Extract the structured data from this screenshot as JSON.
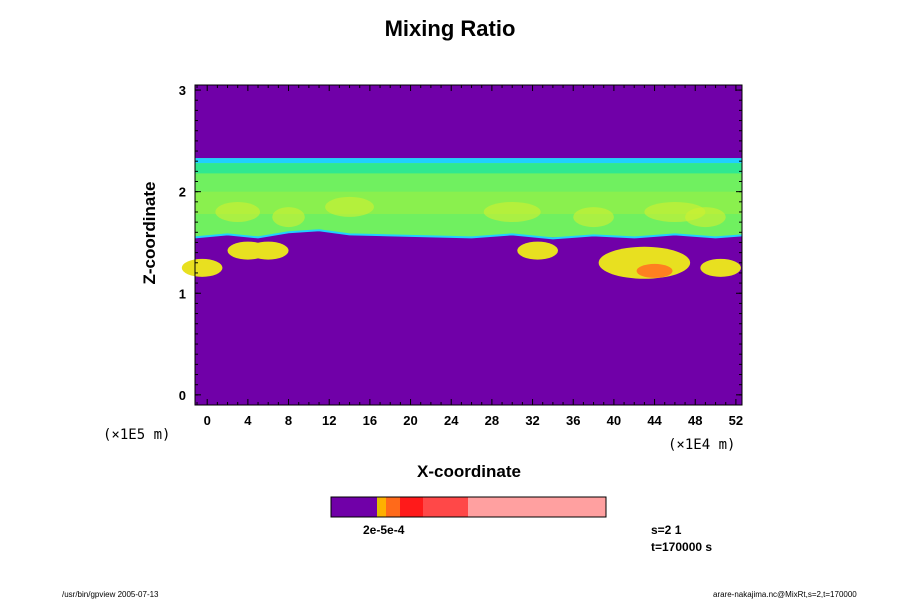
{
  "chart_data": {
    "type": "heatmap",
    "title": "Mixing Ratio",
    "xlabel": "X-coordinate",
    "ylabel": "Z-coordinate",
    "x_unit_label": "(×1E4 m)",
    "y_unit_label": "(×1E5 m)",
    "xlim": [
      -1.2,
      52.6
    ],
    "ylim": [
      -0.1,
      3.05
    ],
    "x_ticks": [
      "0",
      "4",
      "8",
      "12",
      "16",
      "20",
      "24",
      "28",
      "32",
      "36",
      "40",
      "44",
      "48",
      "52"
    ],
    "y_ticks": [
      "0",
      "1",
      "2",
      "3"
    ],
    "colorbar": {
      "colors": [
        "#7000a8",
        "#e0c000",
        "#ffb000",
        "#ff6a1a",
        "#ff1a1a",
        "#ff4848",
        "#ffa0a0"
      ],
      "label_text": "2e-5e-4"
    },
    "regions": {
      "background_color": "#7000a8",
      "cloud_layer_z": [
        1.55,
        2.33
      ],
      "top_edge_color": "#20d0ff",
      "layer_colors": [
        "#30e890",
        "#70f060",
        "#a0f040",
        "#d0f030"
      ],
      "yellow_pockets_x": [
        -0.5,
        4,
        6,
        32.5,
        43,
        50.5
      ],
      "core_color": "#ff8020",
      "core_x": 44,
      "core_z": 1.22
    }
  },
  "info": {
    "slice": "s=2 1",
    "time": "t=170000 s"
  },
  "footer": {
    "left": "/usr/bin/gpview 2005-07-13",
    "right": "arare-nakajima.nc@MixRt,s=2,t=170000"
  }
}
